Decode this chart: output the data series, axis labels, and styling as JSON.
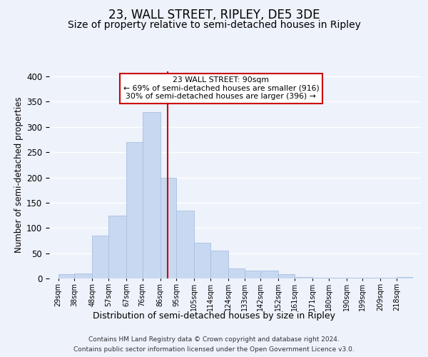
{
  "title": "23, WALL STREET, RIPLEY, DE5 3DE",
  "subtitle": "Size of property relative to semi-detached houses in Ripley",
  "xlabel": "Distribution of semi-detached houses by size in Ripley",
  "ylabel": "Number of semi-detached properties",
  "footer_line1": "Contains HM Land Registry data © Crown copyright and database right 2024.",
  "footer_line2": "Contains public sector information licensed under the Open Government Licence v3.0.",
  "bar_left_edges": [
    29,
    38,
    48,
    57,
    67,
    76,
    86,
    95,
    105,
    114,
    124,
    133,
    142,
    152,
    161,
    171,
    180,
    190,
    199,
    209,
    218
  ],
  "bar_widths": [
    9,
    10,
    9,
    10,
    9,
    10,
    9,
    10,
    9,
    10,
    9,
    9,
    10,
    9,
    10,
    9,
    10,
    9,
    10,
    9,
    9
  ],
  "bar_heights": [
    8,
    10,
    85,
    125,
    270,
    330,
    200,
    135,
    70,
    55,
    20,
    15,
    15,
    8,
    3,
    2,
    1,
    1,
    1,
    1,
    3
  ],
  "bar_color": "#c8d8f0",
  "bar_edgecolor": "#a8c0e0",
  "vline_x": 90,
  "vline_color": "#cc0000",
  "annotation_title": "23 WALL STREET: 90sqm",
  "annotation_line1": "← 69% of semi-detached houses are smaller (916)",
  "annotation_line2": "30% of semi-detached houses are larger (396) →",
  "annotation_box_edgecolor": "#cc0000",
  "annotation_box_facecolor": "#ffffff",
  "ylim": [
    0,
    410
  ],
  "xlim": [
    24,
    232
  ],
  "tick_labels": [
    "29sqm",
    "38sqm",
    "48sqm",
    "57sqm",
    "67sqm",
    "76sqm",
    "86sqm",
    "95sqm",
    "105sqm",
    "114sqm",
    "124sqm",
    "133sqm",
    "142sqm",
    "152sqm",
    "161sqm",
    "171sqm",
    "180sqm",
    "190sqm",
    "199sqm",
    "209sqm",
    "218sqm"
  ],
  "tick_positions": [
    29,
    38,
    48,
    57,
    67,
    76,
    86,
    95,
    105,
    114,
    124,
    133,
    142,
    152,
    161,
    171,
    180,
    190,
    199,
    209,
    218
  ],
  "background_color": "#eef2fb",
  "grid_color": "#ffffff",
  "title_fontsize": 12,
  "subtitle_fontsize": 10,
  "axis_label_fontsize": 8.5,
  "tick_fontsize": 7,
  "footer_fontsize": 6.5,
  "yticks": [
    0,
    50,
    100,
    150,
    200,
    250,
    300,
    350,
    400
  ]
}
